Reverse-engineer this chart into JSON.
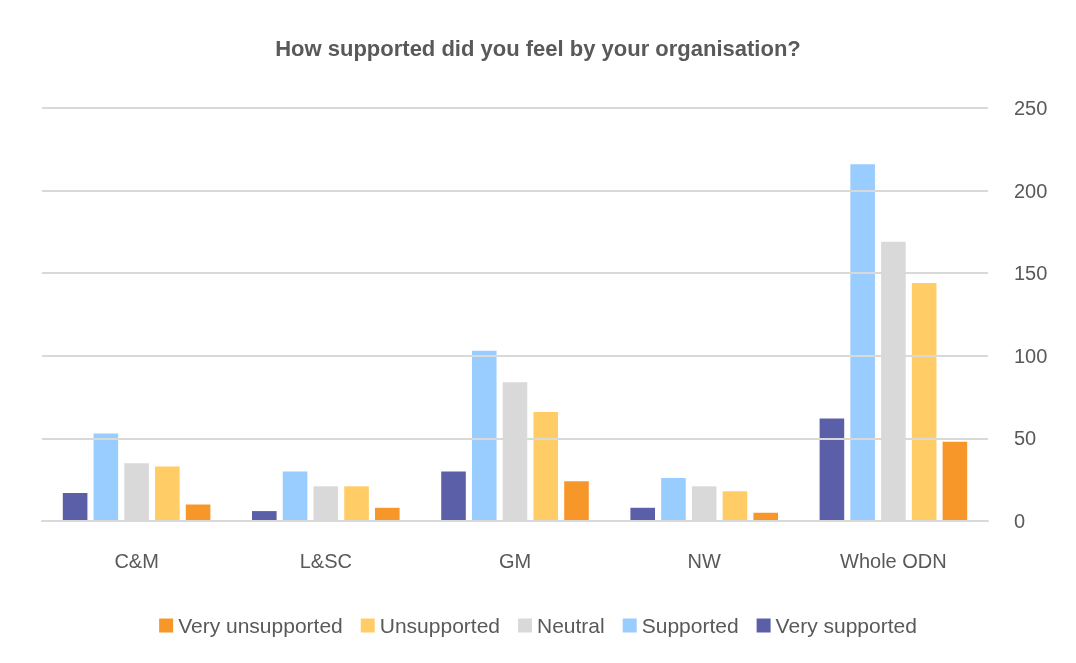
{
  "chart_data": {
    "type": "bar",
    "title": "How supported did you feel by your organisation?",
    "categories": [
      "C&M",
      "L&SC",
      "GM",
      "NW",
      "Whole ODN"
    ],
    "series": [
      {
        "name": "Very supported",
        "color": "#5b5fa8",
        "values": [
          17,
          6,
          30,
          8,
          62
        ]
      },
      {
        "name": "Supported",
        "color": "#99ccff",
        "values": [
          53,
          30,
          103,
          26,
          216
        ]
      },
      {
        "name": "Neutral",
        "color": "#d9d9d9",
        "values": [
          35,
          21,
          84,
          21,
          169
        ]
      },
      {
        "name": "Unsupported",
        "color": "#ffcc66",
        "values": [
          33,
          21,
          66,
          18,
          144
        ]
      },
      {
        "name": "Very unsupported",
        "color": "#f7972a",
        "values": [
          10,
          8,
          24,
          5,
          48
        ]
      }
    ],
    "ylim": [
      0,
      250
    ],
    "yticks": [
      0,
      50,
      100,
      150,
      200,
      250
    ],
    "grid": "y",
    "legend": "bottom"
  }
}
